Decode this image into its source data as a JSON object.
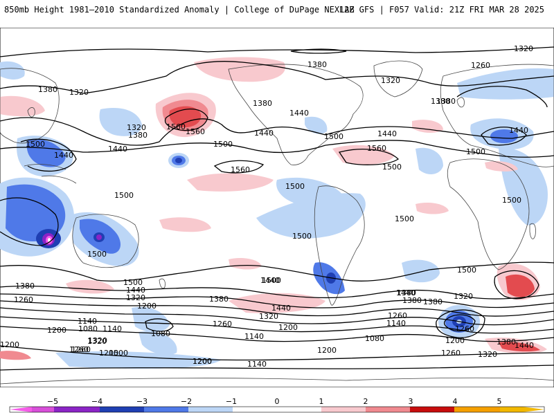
{
  "header": {
    "title": "850mb Height 1981–2010 Standardized Anomaly | College of DuPage NEXLAB",
    "run_info": "12Z GFS | F057 Valid: 21Z FRI MAR 28 2025"
  },
  "colors": {
    "neg5": "#f55be8",
    "neg4": "#8b24c6",
    "neg3": "#1f3fb3",
    "neg2": "#4f79e8",
    "neg1": "#bcd6f6",
    "pos1": "#f8c9ce",
    "pos2": "#f08a90",
    "pos3": "#e34b4f",
    "pos4": "#c70d0d",
    "pos5": "#f5a000",
    "contour": "#000000",
    "land": "#444444"
  },
  "colorbar": {
    "ticks": [
      "−5",
      "−4",
      "−3",
      "−2",
      "−1",
      "0",
      "1",
      "2",
      "3",
      "4",
      "5"
    ]
  },
  "contour_labels": [
    {
      "id": "l1",
      "text": "1320"
    },
    {
      "id": "l2",
      "text": "1380"
    },
    {
      "id": "l3",
      "text": "1380"
    },
    {
      "id": "l4",
      "text": "1320"
    },
    {
      "id": "l5",
      "text": "1260"
    },
    {
      "id": "l6",
      "text": "1320"
    },
    {
      "id": "l7",
      "text": "1380"
    },
    {
      "id": "l8",
      "text": "1320"
    },
    {
      "id": "l9",
      "text": "1380"
    },
    {
      "id": "l10",
      "text": "1500"
    },
    {
      "id": "l11",
      "text": "1440"
    },
    {
      "id": "l12",
      "text": "1440"
    },
    {
      "id": "l13",
      "text": "1560"
    },
    {
      "id": "l14",
      "text": "1380"
    },
    {
      "id": "l15",
      "text": "1440"
    },
    {
      "id": "l16",
      "text": "1500"
    },
    {
      "id": "l17",
      "text": "1440"
    },
    {
      "id": "l18",
      "text": "1500"
    },
    {
      "id": "l19",
      "text": "1560"
    },
    {
      "id": "l20",
      "text": "1560"
    },
    {
      "id": "l21",
      "text": "1500"
    },
    {
      "id": "l22",
      "text": "1440"
    },
    {
      "id": "l23",
      "text": "1440"
    },
    {
      "id": "l24",
      "text": "1380"
    },
    {
      "id": "l25",
      "text": "1500"
    },
    {
      "id": "l26",
      "text": "1500"
    },
    {
      "id": "l27",
      "text": "1500"
    },
    {
      "id": "l28",
      "text": "1500"
    },
    {
      "id": "l29",
      "text": "1500"
    },
    {
      "id": "l30",
      "text": "1560"
    },
    {
      "id": "l31",
      "text": "1500"
    },
    {
      "id": "l32",
      "text": "1500"
    },
    {
      "id": "l33",
      "text": "1500"
    },
    {
      "id": "l34",
      "text": "1500"
    },
    {
      "id": "l35",
      "text": "1500"
    },
    {
      "id": "l36",
      "text": "1440"
    },
    {
      "id": "l37",
      "text": "1380"
    },
    {
      "id": "l38",
      "text": "1320"
    },
    {
      "id": "l39",
      "text": "1260"
    },
    {
      "id": "l40",
      "text": "1200"
    },
    {
      "id": "l41",
      "text": "1140"
    },
    {
      "id": "l42",
      "text": "1080"
    },
    {
      "id": "l43",
      "text": "1140"
    },
    {
      "id": "l44",
      "text": "1200"
    },
    {
      "id": "l45",
      "text": "1080"
    },
    {
      "id": "l46",
      "text": "1320"
    },
    {
      "id": "l47",
      "text": "1260"
    },
    {
      "id": "l48",
      "text": "1200"
    },
    {
      "id": "l49",
      "text": "1200"
    },
    {
      "id": "l50",
      "text": "1440"
    },
    {
      "id": "l51",
      "text": "1380"
    },
    {
      "id": "l52",
      "text": "1320"
    },
    {
      "id": "l53",
      "text": "1260"
    },
    {
      "id": "l54",
      "text": "1200"
    },
    {
      "id": "l55",
      "text": "1140"
    },
    {
      "id": "l56",
      "text": "1200"
    },
    {
      "id": "l57",
      "text": "1080"
    },
    {
      "id": "l58",
      "text": "1140"
    },
    {
      "id": "l59",
      "text": "1260"
    },
    {
      "id": "l60",
      "text": "1380"
    },
    {
      "id": "l61",
      "text": "1440"
    },
    {
      "id": "l62",
      "text": "1380"
    },
    {
      "id": "l63",
      "text": "1320"
    },
    {
      "id": "l64",
      "text": "1200"
    },
    {
      "id": "l65",
      "text": "1260"
    },
    {
      "id": "l66",
      "text": "1440"
    },
    {
      "id": "l67",
      "text": "1380"
    },
    {
      "id": "l68",
      "text": "1320"
    },
    {
      "id": "l69",
      "text": "1260"
    },
    {
      "id": "l70",
      "text": "1140"
    },
    {
      "id": "l71",
      "text": "1200"
    },
    {
      "id": "l72",
      "text": "1320"
    },
    {
      "id": "l73",
      "text": "1260"
    },
    {
      "id": "l74",
      "text": "1200"
    },
    {
      "id": "l75",
      "text": "1500"
    },
    {
      "id": "l76",
      "text": "1440"
    },
    {
      "id": "l77",
      "text": "1380"
    }
  ]
}
